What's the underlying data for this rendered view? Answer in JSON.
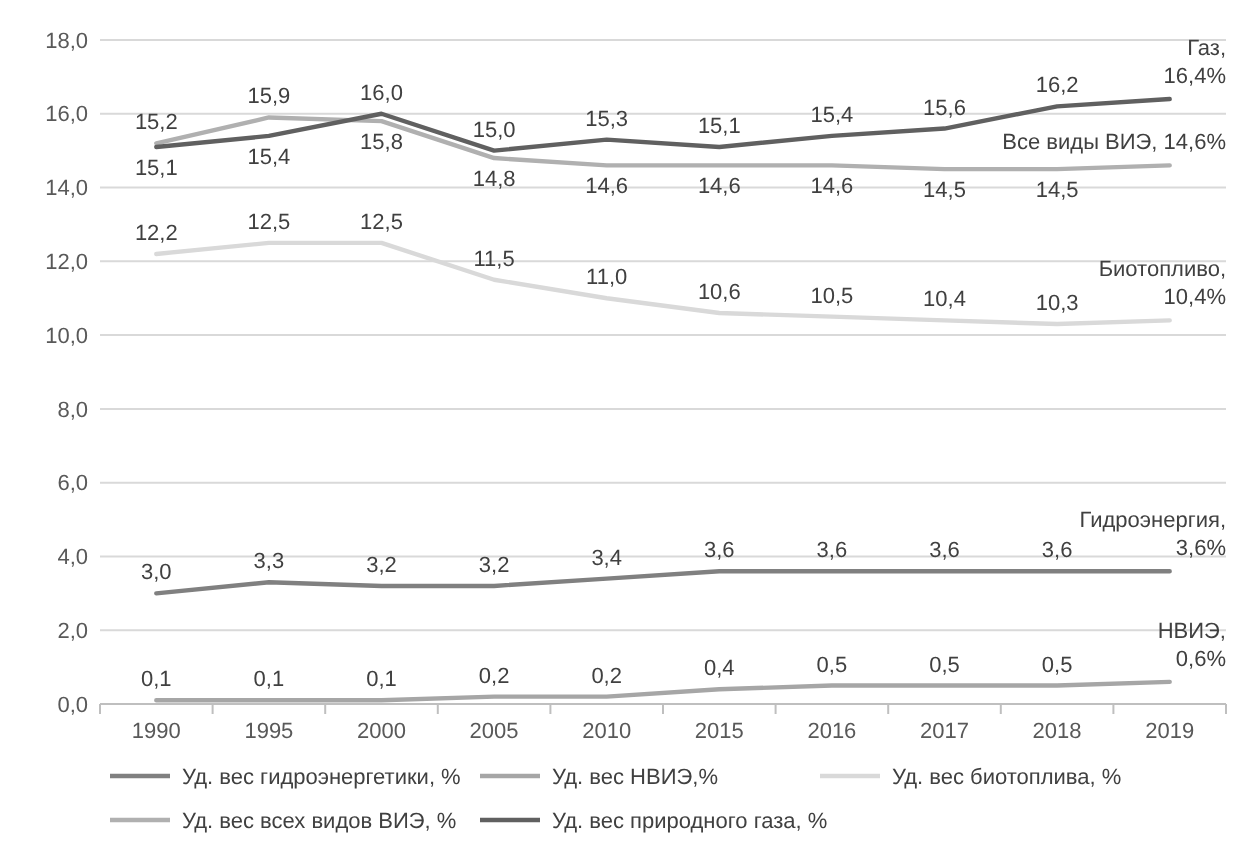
{
  "chart_data": {
    "type": "line",
    "categories": [
      "1990",
      "1995",
      "2000",
      "2005",
      "2010",
      "2015",
      "2016",
      "2017",
      "2018",
      "2019"
    ],
    "ylim": [
      0,
      18
    ],
    "yticks": [
      {
        "value": 0,
        "label": "0,0"
      },
      {
        "value": 2,
        "label": "2,0"
      },
      {
        "value": 4,
        "label": "4,0"
      },
      {
        "value": 6,
        "label": "6,0"
      },
      {
        "value": 8,
        "label": "8,0"
      },
      {
        "value": 10,
        "label": "10,0"
      },
      {
        "value": 12,
        "label": "12,0"
      },
      {
        "value": 14,
        "label": "14,0"
      },
      {
        "value": 16,
        "label": "16,0"
      },
      {
        "value": 18,
        "label": "18,0"
      }
    ],
    "grid": "y",
    "legend": "bottom",
    "marker": "none",
    "line_style": "solid",
    "series": [
      {
        "name": "Уд. вес гидроэнергетики, %",
        "color": "#808080",
        "values": [
          3.0,
          3.3,
          3.2,
          3.2,
          3.4,
          3.6,
          3.6,
          3.6,
          3.6,
          3.6
        ],
        "value_labels": [
          "3,0",
          "3,3",
          "3,2",
          "3,2",
          "3,4",
          "3,6",
          "3,6",
          "3,6",
          "3,6",
          null
        ]
      },
      {
        "name": "Уд. вес НВИЭ,%",
        "color": "#a6a6a6",
        "values": [
          0.1,
          0.1,
          0.1,
          0.2,
          0.2,
          0.4,
          0.5,
          0.5,
          0.5,
          0.6
        ],
        "value_labels": [
          "0,1",
          "0,1",
          "0,1",
          "0,2",
          "0,2",
          "0,4",
          "0,5",
          "0,5",
          "0,5",
          null
        ]
      },
      {
        "name": "Уд. вес биотоплива, %",
        "color": "#d9d9d9",
        "values": [
          12.2,
          12.5,
          12.5,
          11.5,
          11.0,
          10.6,
          10.5,
          10.4,
          10.3,
          10.4
        ],
        "value_labels": [
          "12,2",
          "12,5",
          "12,5",
          "11,5",
          "11,0",
          "10,6",
          "10,5",
          "10,4",
          "10,3",
          null
        ]
      },
      {
        "name": "Уд. вес всех видов ВИЭ, %",
        "color": "#b0b0b0",
        "values": [
          15.2,
          15.9,
          15.8,
          14.8,
          14.6,
          14.6,
          14.6,
          14.5,
          14.5,
          14.6
        ],
        "value_labels": [
          "15,2",
          "15,9",
          "15,8",
          "14,8",
          "14,6",
          "14,6",
          "14,6",
          "14,5",
          "14,5",
          null
        ]
      },
      {
        "name": "Уд. вес природного газа, %",
        "color": "#606060",
        "values": [
          15.1,
          15.4,
          16.0,
          15.0,
          15.3,
          15.1,
          15.4,
          15.6,
          16.2,
          16.4
        ],
        "value_labels": [
          "15,1",
          "15,4",
          "16,0",
          "15,0",
          "15,3",
          "15,1",
          "15,4",
          "15,6",
          "16,2",
          null
        ]
      }
    ],
    "annotations": [
      {
        "text": "Газ, 16,4%",
        "x": "2019",
        "y": 16.4
      },
      {
        "text": "Все виды ВИЭ, 14,6%",
        "x": "2019",
        "y": 14.6
      },
      {
        "text": "Биотопливо, 10,4%",
        "x": "2019",
        "y": 10.4
      },
      {
        "text": "Гидроэнергия, 3,6%",
        "x": "2019",
        "y": 3.6
      },
      {
        "text": "НВИЭ, 0,6%",
        "x": "2019",
        "y": 0.6
      }
    ]
  }
}
